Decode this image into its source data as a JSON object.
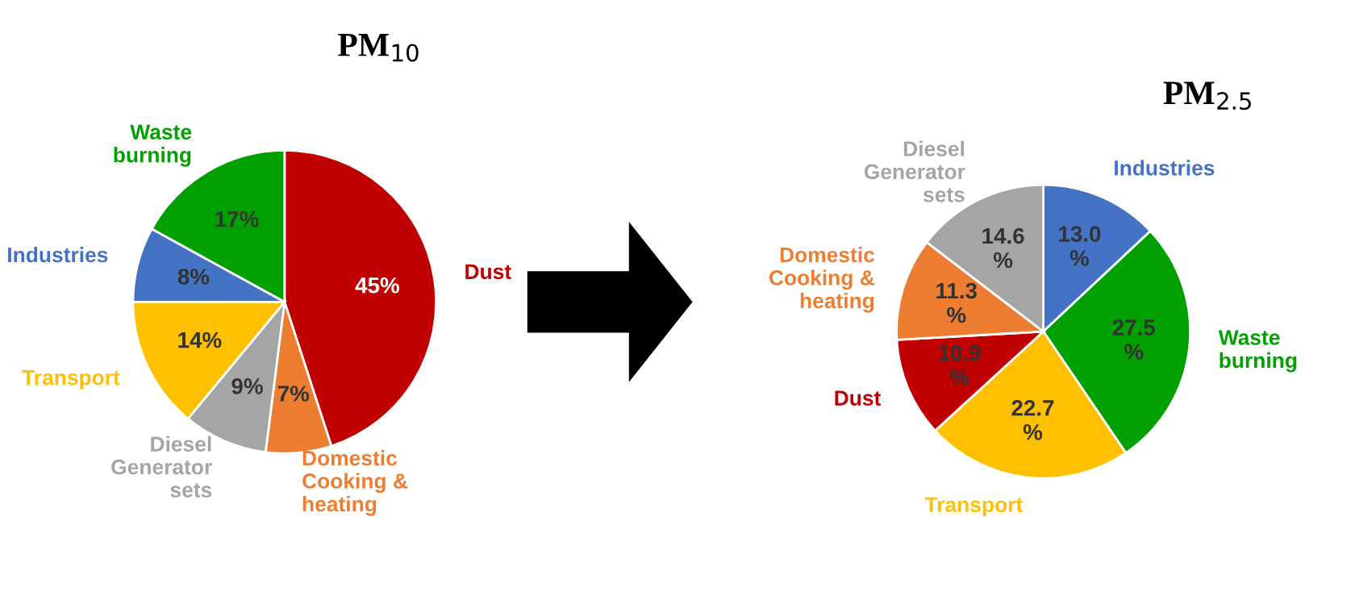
{
  "chart_data": [
    {
      "type": "pie",
      "title": "PM$_{10}$",
      "categories": [
        "Dust",
        "Domestic\nCooking &\nheating",
        "Diesel\nGenerator\nsets",
        "Transport",
        "Industries",
        "Waste\nburning"
      ],
      "values": [
        45,
        7,
        9,
        14,
        8,
        17
      ],
      "value_labels": [
        "45%",
        "7%",
        "9%",
        "14%",
        "8%",
        "17%"
      ],
      "colors": [
        "#c00000",
        "#ed7d31",
        "#a5a5a5",
        "#ffc000",
        "#4472c4",
        "#00a000"
      ]
    },
    {
      "type": "pie",
      "title": "PM$_{2.5}$",
      "categories": [
        "Industries",
        "Waste\nburning",
        "Transport",
        "Dust",
        "Domestic\nCooking &\nheating",
        "Diesel\nGenerator\nsets"
      ],
      "values": [
        13.0,
        27.5,
        22.7,
        10.9,
        11.3,
        14.6
      ],
      "value_labels": [
        "13.0\n%",
        "27.5\n%",
        "22.7\n%",
        "10.9\n%",
        "11.3\n%",
        "14.6\n%"
      ],
      "colors": [
        "#4472c4",
        "#00a000",
        "#ffc000",
        "#c00000",
        "#ed7d31",
        "#a5a5a5"
      ]
    }
  ]
}
